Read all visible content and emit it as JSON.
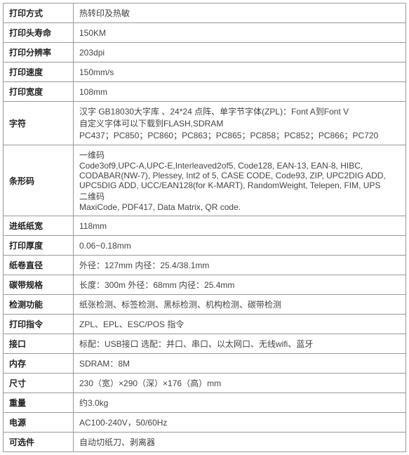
{
  "spec_table": {
    "columns": [
      "label",
      "value"
    ],
    "column_widths": [
      "100px",
      "auto"
    ],
    "border_color": "#999999",
    "background_color": "#ffffff",
    "font_size": 12,
    "label_font_weight": "bold",
    "rows": [
      {
        "label": "打印方式",
        "value": "热转印及热敏"
      },
      {
        "label": "打印头寿命",
        "value": "150KM"
      },
      {
        "label": "打印分辨率",
        "value": "203dpi"
      },
      {
        "label": "打印速度",
        "value": "150mm/s"
      },
      {
        "label": "打印宽度",
        "value": "108mm"
      },
      {
        "label": "字符",
        "value": "汉字 GB18030大字库 、24*24 点阵、单字节字体(ZPL)：Font A到Font V\n自定义字体可以下载到FLASH,SDRAM\nPC437；PC850；PC860；PC863；PC865；PC858；PC852；PC866；PC720"
      },
      {
        "label": "条形码",
        "value": "一维码\nCode3of9,UPC-A,UPC-E,Interleaved2of5, Code128, EAN-13, EAN-8, HIBC, CODABAR(NW-7), Plessey, Int2 of 5, CASE CODE, Code93, ZIP, UPC2DIG ADD, UPC5DIG ADD, UCC/EAN128(for K-MART), RandomWeight, Telepen, FIM, UPS\n二维码\nMaxiCode, PDF417, Data Matrix, QR code."
      },
      {
        "label": "进纸纸宽",
        "value": "118mm"
      },
      {
        "label": "打印厚度",
        "value": "0.06~0.18mm"
      },
      {
        "label": "纸卷直径",
        "value": "外径：127mm     内径：25.4/38.1mm"
      },
      {
        "label": "碳带规格",
        "value": "长度：300m      外径：68mm     内径：25.4mm"
      },
      {
        "label": "检测功能",
        "value": "纸张检测、标签检测、黑标检测、机构检测、碳带检测"
      },
      {
        "label": "打印指令",
        "value": "ZPL、EPL、ESC/POS 指令"
      },
      {
        "label": "接口",
        "value": "标配：USB接口     选配：并口、串口、以太网口、无线wifi、蓝牙"
      },
      {
        "label": "内存",
        "value": "SDRAM：8M"
      },
      {
        "label": "尺寸",
        "value": "230（宽）×290（深）×176（高）mm"
      },
      {
        "label": "重量",
        "value": "约3.0kg"
      },
      {
        "label": "电源",
        "value": "AC100-240V，50/60Hz"
      },
      {
        "label": "可选件",
        "value": "自动切纸刀、剥离器"
      }
    ]
  }
}
